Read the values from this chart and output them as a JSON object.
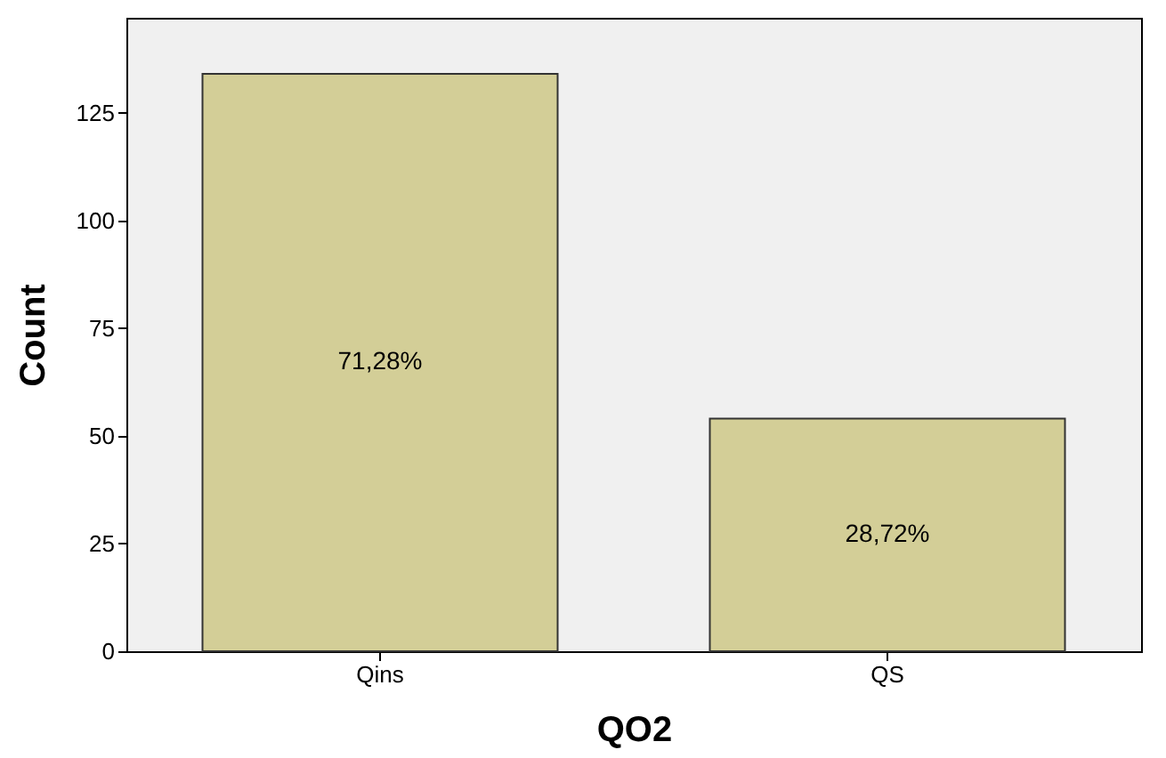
{
  "chart_data": {
    "type": "bar",
    "xlabel": "QO2",
    "ylabel": "Count",
    "categories": [
      "Qins",
      "QS"
    ],
    "values": [
      134,
      54
    ],
    "color": "#d3ce97",
    "annotations": [
      "71,28%",
      "28,72%"
    ],
    "ylim": [
      0,
      147
    ],
    "yticks": [
      0,
      25,
      50,
      75,
      100,
      125
    ],
    "grid": false
  }
}
